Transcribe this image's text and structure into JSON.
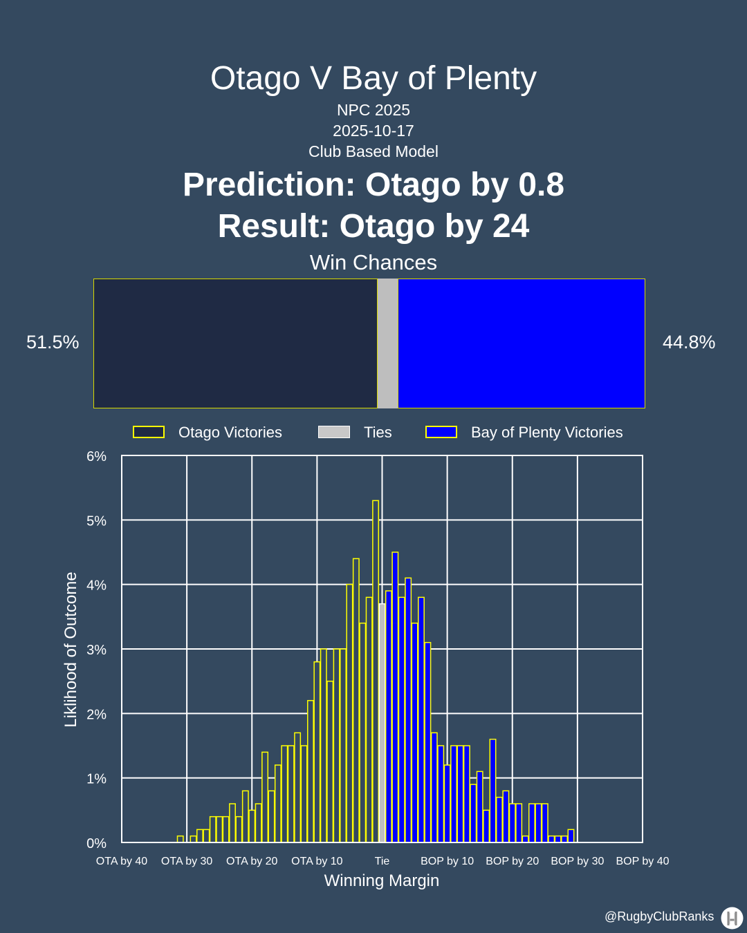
{
  "header": {
    "title": "Otago V Bay of Plenty",
    "competition": "NPC 2025",
    "date": "2025-10-17",
    "model": "Club Based Model",
    "prediction": "Prediction: Otago by 0.8",
    "result": "Result: Otago by 24",
    "win_chances_title": "Win Chances"
  },
  "win_chances": {
    "otago_pct_label": "51.5%",
    "bop_pct_label": "44.8%",
    "otago": 51.5,
    "tie": 3.7,
    "bop": 44.8
  },
  "legend": {
    "otago": "Otago Victories",
    "ties": "Ties",
    "bop": "Bay of Plenty Victories"
  },
  "footer": {
    "handle": "@RugbyClubRanks"
  },
  "colors": {
    "background": "#34495f",
    "otago_fill": "#1f2a44",
    "otago_hist": "#34495f",
    "tie_fill": "#c0c0c0",
    "bop_fill": "#0000ff",
    "outline": "#ffff00",
    "grid": "#ffffff"
  },
  "chart_data": {
    "type": "bar",
    "xlabel": "Winning Margin",
    "ylabel": "Liklihood of Outcome",
    "xlim": [
      -40,
      40
    ],
    "ylim": [
      0,
      6
    ],
    "x_ticks": [
      -40,
      -30,
      -20,
      -10,
      0,
      10,
      20,
      30,
      40
    ],
    "x_tick_labels": [
      "OTA by 40",
      "OTA by 30",
      "OTA by 20",
      "OTA by 10",
      "Tie",
      "BOP by 10",
      "BOP by 20",
      "BOP by 30",
      "BOP by 40"
    ],
    "y_ticks": [
      0,
      1,
      2,
      3,
      4,
      5,
      6
    ],
    "y_tick_labels": [
      "0%",
      "1%",
      "2%",
      "3%",
      "4%",
      "5%",
      "6%"
    ],
    "grid": true,
    "series": [
      {
        "name": "Otago Victories",
        "margins": [
          -31,
          -30,
          -29,
          -28,
          -27,
          -26,
          -25,
          -24,
          -23,
          -22,
          -21,
          -20,
          -19,
          -18,
          -17,
          -16,
          -15,
          -14,
          -13,
          -12,
          -11,
          -10,
          -9,
          -8,
          -7,
          -6,
          -5,
          -4,
          -3,
          -2,
          -1
        ],
        "values": [
          0.1,
          0.0,
          0.1,
          0.2,
          0.2,
          0.4,
          0.4,
          0.4,
          0.6,
          0.4,
          0.8,
          0.5,
          0.6,
          1.4,
          0.8,
          1.2,
          1.5,
          1.5,
          1.7,
          1.5,
          2.2,
          2.8,
          3.0,
          2.5,
          3.0,
          3.0,
          4.0,
          4.4,
          3.4,
          3.8,
          5.3
        ]
      },
      {
        "name": "Ties",
        "margins": [
          0
        ],
        "values": [
          3.7
        ]
      },
      {
        "name": "Bay of Plenty Victories",
        "margins": [
          1,
          2,
          3,
          4,
          5,
          6,
          7,
          8,
          9,
          10,
          11,
          12,
          13,
          14,
          15,
          16,
          17,
          18,
          19,
          20,
          21,
          22,
          23,
          24,
          25,
          26,
          27,
          28,
          29
        ],
        "values": [
          3.9,
          4.5,
          3.8,
          4.1,
          3.4,
          3.8,
          3.1,
          1.7,
          1.5,
          1.2,
          1.5,
          1.5,
          1.5,
          0.9,
          1.1,
          0.5,
          1.6,
          0.7,
          0.8,
          0.6,
          0.6,
          0.1,
          0.6,
          0.6,
          0.6,
          0.1,
          0.1,
          0.1,
          0.2
        ]
      }
    ]
  }
}
